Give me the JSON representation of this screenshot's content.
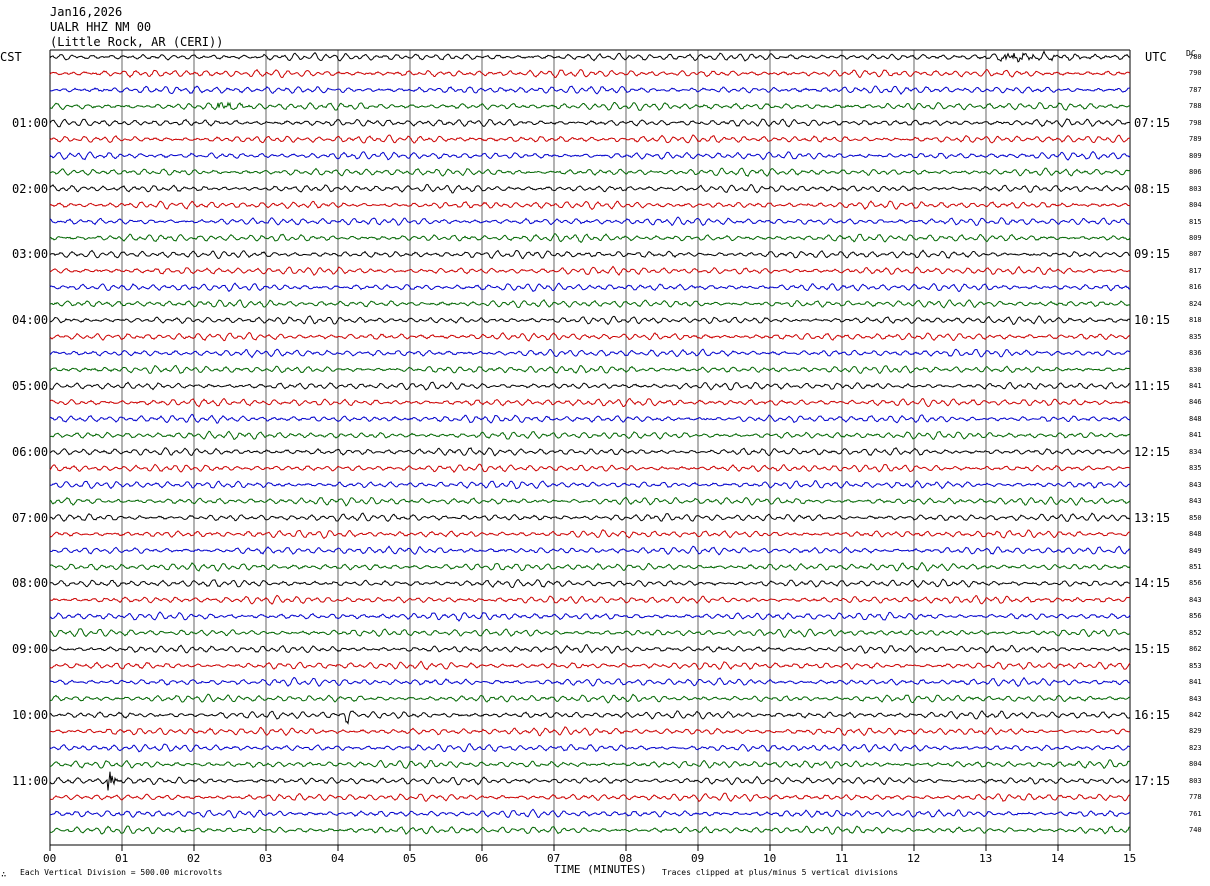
{
  "header": {
    "date": "Jan16,2026",
    "station": "UALR HHZ NM 00",
    "location": "(Little Rock, AR (CERI))"
  },
  "left_axis_label": "CST",
  "right_axis_label": "UTC",
  "dc_label": "DC",
  "footer": {
    "scale_note": "Each Vertical Division =  500.00 microvolts",
    "clip_note": "Traces clipped at plus/minus 5 vertical divisions",
    "mark": "∴"
  },
  "colors": {
    "trace_cycle": [
      "#000000",
      "#cc0000",
      "#0000cc",
      "#006600"
    ],
    "grid": "#000000"
  },
  "chart_data": {
    "type": "line",
    "xlabel": "TIME (MINUTES)",
    "xlim": [
      0,
      15
    ],
    "x_ticks": [
      "00",
      "01",
      "02",
      "03",
      "04",
      "05",
      "06",
      "07",
      "08",
      "09",
      "10",
      "11",
      "12",
      "13",
      "14",
      "15"
    ],
    "trace_count": 48,
    "hour_labels_left": [
      "01:00",
      "02:00",
      "03:00",
      "04:00",
      "05:00",
      "06:00",
      "07:00",
      "08:00",
      "09:00",
      "10:00",
      "11:00"
    ],
    "hour_labels_right": [
      "07:15",
      "08:15",
      "09:15",
      "10:15",
      "11:15",
      "12:15",
      "13:15",
      "14:15",
      "15:15",
      "16:15",
      "17:15"
    ],
    "dc_offsets": [
      780,
      790,
      787,
      788,
      798,
      789,
      809,
      806,
      803,
      804,
      815,
      809,
      807,
      817,
      816,
      824,
      818,
      835,
      836,
      830,
      841,
      846,
      848,
      841,
      834,
      835,
      843,
      843,
      850,
      848,
      849,
      851,
      856,
      843,
      856,
      852,
      862,
      853,
      841,
      843,
      842,
      829,
      823,
      804,
      803,
      778,
      761,
      740
    ],
    "events": [
      {
        "trace": 0,
        "start_min": 13.2,
        "end_min": 14.8,
        "amplitude": "medium"
      },
      {
        "trace": 3,
        "start_min": 2.3,
        "end_min": 2.9,
        "amplitude": "medium"
      },
      {
        "trace": 40,
        "start_min": 4.1,
        "end_min": 4.3,
        "amplitude": "large"
      },
      {
        "trace": 44,
        "start_min": 0.8,
        "end_min": 1.0,
        "amplitude": "large"
      }
    ]
  }
}
